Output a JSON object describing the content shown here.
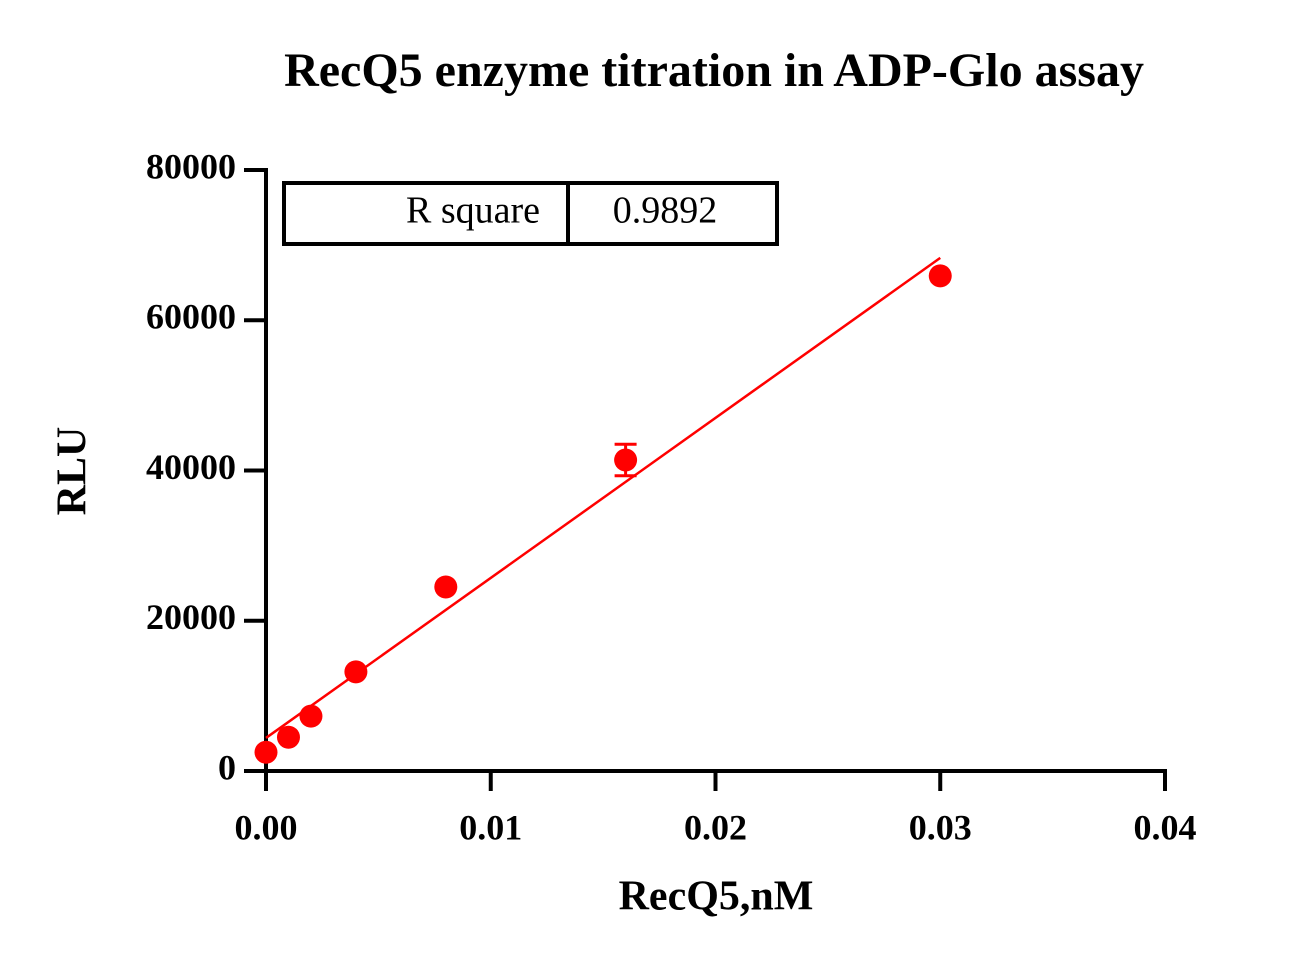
{
  "chart_data": {
    "type": "scatter",
    "title": "RecQ5 enzyme titration in ADP-Glo assay",
    "x_label": "RecQ5,nM",
    "y_label": "RLU",
    "x": [
      0,
      0.001,
      0.002,
      0.004,
      0.008,
      0.016,
      0.03
    ],
    "values": [
      2500,
      4500,
      7300,
      13200,
      24500,
      41400,
      65900
    ],
    "errors": [
      null,
      null,
      null,
      null,
      null,
      2100,
      null
    ],
    "color": "#ff0000",
    "fit": {
      "x": [
        0,
        0.03
      ],
      "y": [
        4400,
        68300
      ]
    },
    "stats_table": {
      "label": "R square",
      "value": "0.9892"
    },
    "xlim": [
      0,
      0.04
    ],
    "ylim": [
      0,
      80000
    ],
    "xticks": [
      {
        "value": 0,
        "label": "0.00"
      },
      0.01,
      0.02,
      0.03,
      0.04
    ],
    "yticks": [
      0,
      20000,
      40000,
      60000,
      80000
    ]
  }
}
